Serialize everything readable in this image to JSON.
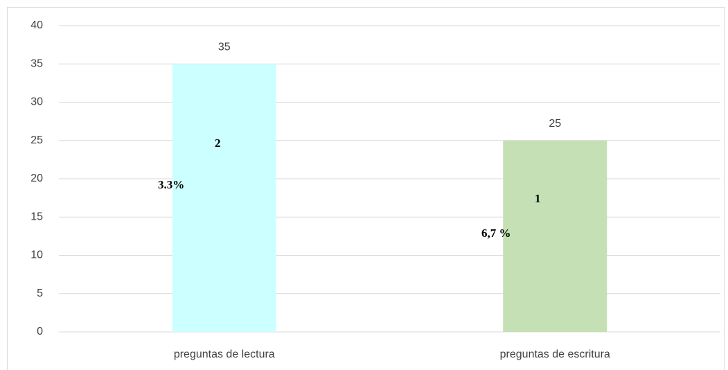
{
  "chart_data": {
    "type": "bar",
    "categories": [
      "preguntas de lectura",
      "preguntas de escritura"
    ],
    "values": [
      35,
      25
    ],
    "colors": [
      "#ccffff",
      "#c5e0b4"
    ],
    "ylim": [
      0,
      40
    ],
    "yticks": [
      0,
      5,
      10,
      15,
      20,
      25,
      30,
      35,
      40
    ],
    "grid": true,
    "annotations": [
      "2",
      "3.3%",
      "1",
      "6,7 %"
    ]
  }
}
